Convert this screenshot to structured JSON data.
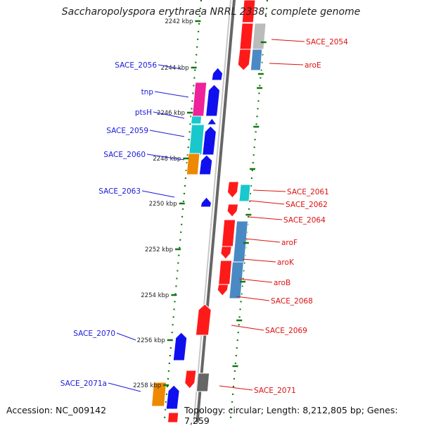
{
  "title": "Saccharopolyspora erythraea NRRL 2338, complete genome",
  "footer": {
    "accession": "Accession: NC_009142",
    "summary": "Topology: circular; Length: 8,212,805 bp; Genes: 7,259"
  },
  "colors": {
    "red": "#ff1a1a",
    "blue": "#1010ee",
    "magenta": "#ee2299",
    "cyan": "#18c8cc",
    "orange": "#ee8800",
    "steel": "#4a8ac4",
    "gray": "#bbbbbb",
    "darkgray": "#666666",
    "tick": "#117711",
    "left_label": "#1a1adc",
    "right_label": "#dc1010"
  },
  "ticks": [
    "2242 kbp",
    "2244 kbp",
    "2246 kbp",
    "2248 kbp",
    "2250 kbp",
    "2252 kbp",
    "2254 kbp",
    "2256 kbp",
    "2258 kbp"
  ],
  "left_labels": [
    "SACE_2056",
    "tnp",
    "ptsH",
    "SACE_2059",
    "SACE_2060",
    "SACE_2063",
    "SACE_2070",
    "SACE_2071a"
  ],
  "right_labels": [
    "SACE_2054",
    "aroE",
    "SACE_2061",
    "SACE_2062",
    "SACE_2064",
    "aroF",
    "aroK",
    "aroB",
    "SACE_2068",
    "SACE_2069",
    "SACE_2071"
  ]
}
